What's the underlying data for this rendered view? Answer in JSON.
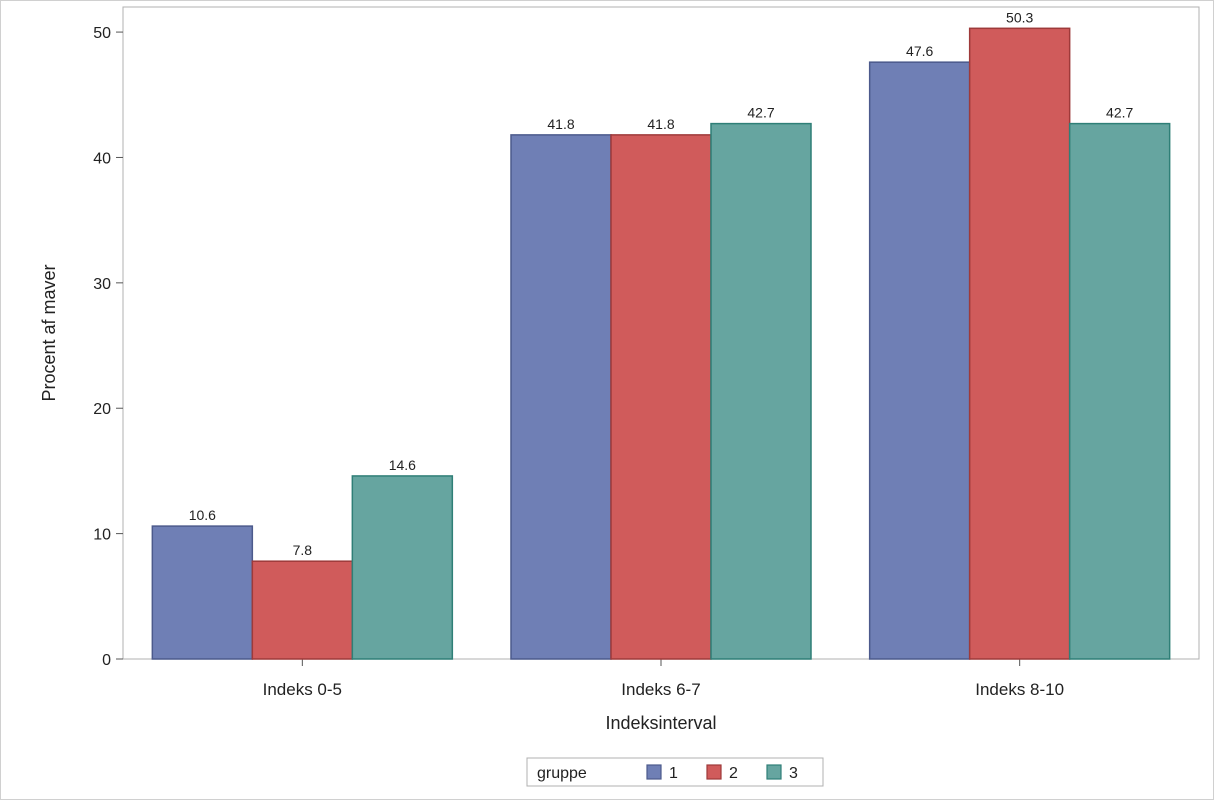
{
  "chart_data": {
    "type": "bar",
    "categories": [
      "Indeks 0-5",
      "Indeks 6-7",
      "Indeks 8-10"
    ],
    "series": [
      {
        "name": "1",
        "values": [
          10.6,
          41.8,
          47.6
        ],
        "color": "#6f7fb5",
        "stroke": "#4c5a8c"
      },
      {
        "name": "2",
        "values": [
          7.8,
          41.8,
          50.3
        ],
        "color": "#d05b5b",
        "stroke": "#9e3a3a"
      },
      {
        "name": "3",
        "values": [
          14.6,
          42.7,
          42.7
        ],
        "color": "#66a5a0",
        "stroke": "#2f7f77"
      }
    ],
    "data_labels": [
      [
        "10.6",
        "41.8",
        "47.6"
      ],
      [
        "7.8",
        "41.8",
        "50.3"
      ],
      [
        "14.6",
        "42.7",
        "42.7"
      ]
    ],
    "xlabel": "Indeksinterval",
    "ylabel": "Procent af maver",
    "ylim": [
      0,
      52
    ],
    "yticks": [
      0,
      10,
      20,
      30,
      40,
      50
    ],
    "grid": false,
    "legend": {
      "title": "gruppe",
      "placement": "bottom-center"
    }
  }
}
